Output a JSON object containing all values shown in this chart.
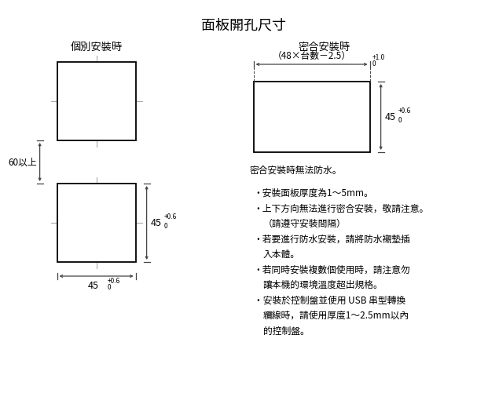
{
  "title": "面板開孔尺寸",
  "left_label": "個別安裝時",
  "right_label": "密合安裝時",
  "bg_color": "#ffffff",
  "line_color": "#000000",
  "dim_line_color": "#444444",
  "note_below_right": "密合安裝時無法防水。",
  "dim_45_right_label": "45",
  "dim_45_right_sup": "+0.6",
  "dim_45_right_sub": "0",
  "dim_width_label": "（48×台數－2.5）",
  "dim_width_sup": "+1.0",
  "dim_width_sub": "0",
  "dim_45h_label": "45",
  "dim_45h_sup": "+0.6",
  "dim_45h_sub": "0",
  "dim_45w_label": "45",
  "dim_45w_sup": "+0.6",
  "dim_45w_sub": "0",
  "dim_60_label": "60以上",
  "bullet_lines": [
    "・安裝面板厚度為1～5mm。",
    "・上下方向無法進行密合安裝，敬請注意。",
    "（請遵守安裝間隔）",
    "・若要進行防水安裝，請將防水襯墊插",
    "入本體。",
    "・若同時安裝複數個使用時，請注意勿",
    "讓本機的環境溫度超出規格。",
    "・安裝於控制盤並使用 USB 串型轉換",
    "纜線時，請使用厚度1～2.5mm以內",
    "的控制盤。"
  ],
  "bullet_indents": [
    0,
    0,
    1,
    0,
    1,
    0,
    1,
    0,
    1,
    1
  ]
}
